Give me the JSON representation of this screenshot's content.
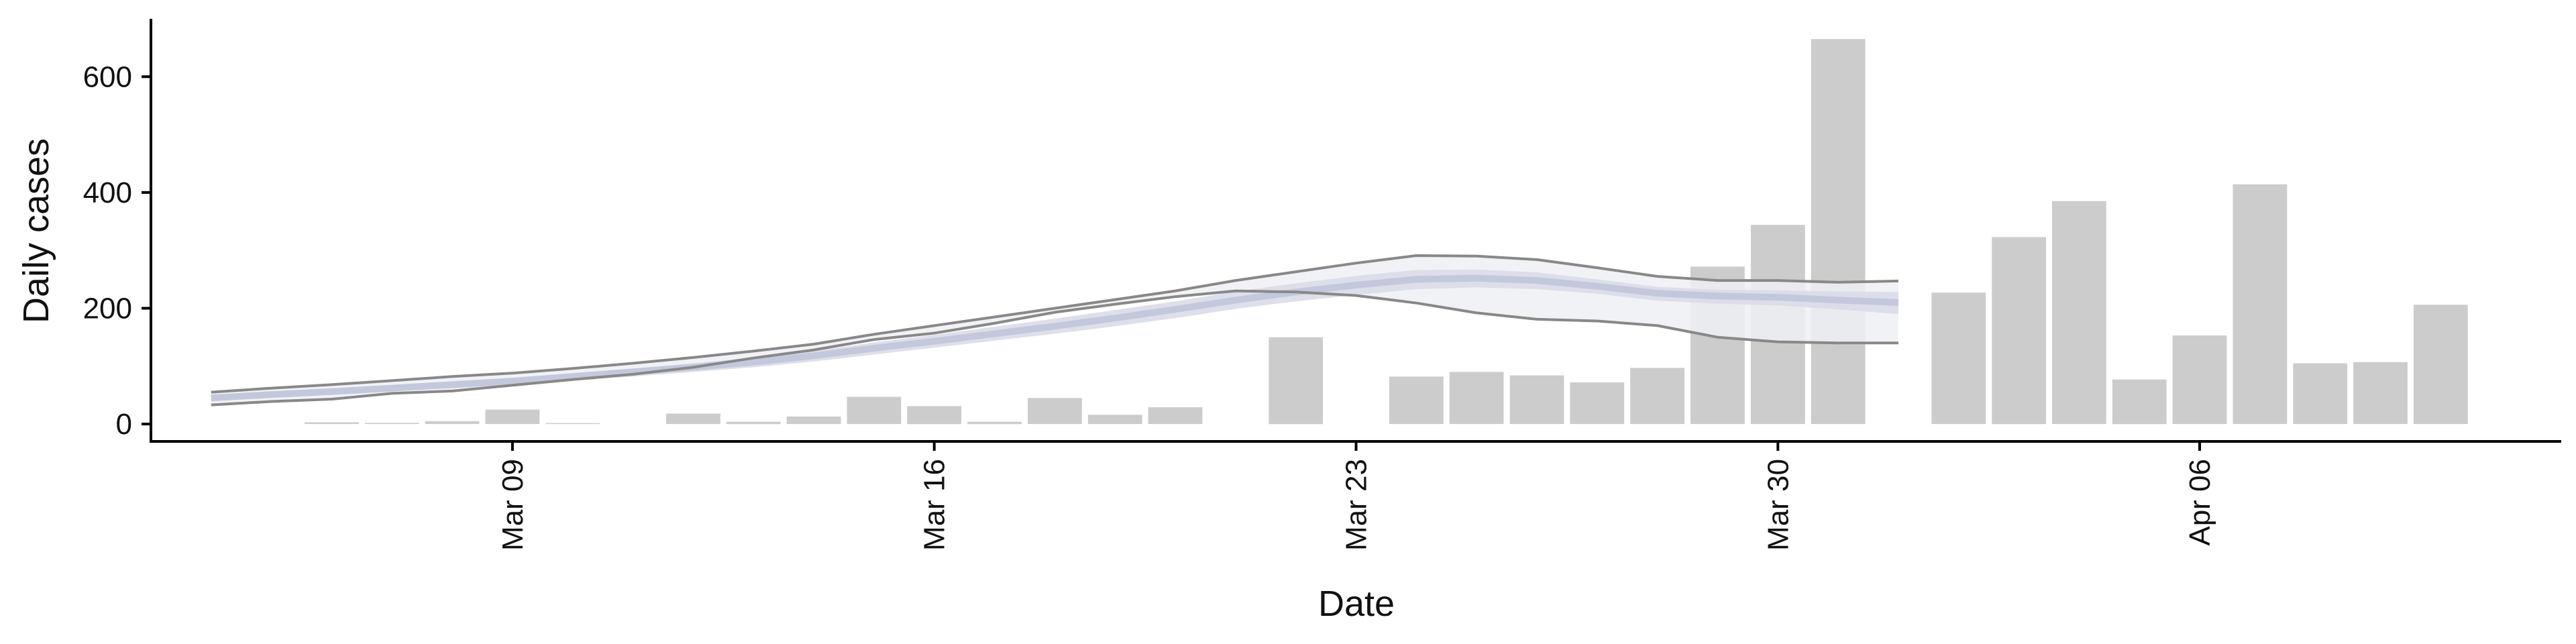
{
  "chart_data": {
    "type": "bar",
    "title": "",
    "xlabel": "Date",
    "ylabel": "Daily cases",
    "ylim": [
      -30,
      700
    ],
    "yticks": [
      0,
      200,
      400,
      600
    ],
    "xlim": [
      "2020-03-03",
      "2020-04-12"
    ],
    "xticks": [
      {
        "date": "2020-03-09",
        "label": "Mar 09"
      },
      {
        "date": "2020-03-16",
        "label": "Mar 16"
      },
      {
        "date": "2020-03-23",
        "label": "Mar 23"
      },
      {
        "date": "2020-03-30",
        "label": "Mar 30"
      },
      {
        "date": "2020-04-06",
        "label": "Apr 06"
      }
    ],
    "grid": false,
    "legend": "none",
    "colors": {
      "bars": "#cccccc",
      "band_outer": "#eff0f5",
      "band_inner": "#d9dce8",
      "median": "#c4c8dc",
      "bound_lines": "#888888",
      "axis": "#000000"
    },
    "bars": {
      "dates": [
        "2020-03-06",
        "2020-03-07",
        "2020-03-08",
        "2020-03-09",
        "2020-03-10",
        "2020-03-12",
        "2020-03-13",
        "2020-03-14",
        "2020-03-15",
        "2020-03-16",
        "2020-03-17",
        "2020-03-18",
        "2020-03-19",
        "2020-03-20",
        "2020-03-22",
        "2020-03-24",
        "2020-03-25",
        "2020-03-26",
        "2020-03-27",
        "2020-03-28",
        "2020-03-29",
        "2020-03-30",
        "2020-03-31",
        "2020-04-02",
        "2020-04-03",
        "2020-04-04",
        "2020-04-05",
        "2020-04-06",
        "2020-04-07",
        "2020-04-08",
        "2020-04-09",
        "2020-04-10"
      ],
      "values": [
        3,
        2,
        5,
        25,
        0,
        18,
        4,
        13,
        47,
        31,
        4,
        45,
        16,
        29,
        150,
        82,
        90,
        84,
        72,
        97,
        272,
        344,
        665,
        227,
        323,
        385,
        77,
        153,
        414,
        105,
        107,
        206
      ]
    },
    "nowcast": {
      "dates": [
        "2020-03-04",
        "2020-03-05",
        "2020-03-06",
        "2020-03-07",
        "2020-03-08",
        "2020-03-09",
        "2020-03-10",
        "2020-03-11",
        "2020-03-12",
        "2020-03-13",
        "2020-03-14",
        "2020-03-15",
        "2020-03-16",
        "2020-03-17",
        "2020-03-18",
        "2020-03-19",
        "2020-03-20",
        "2020-03-21",
        "2020-03-22",
        "2020-03-23",
        "2020-03-24",
        "2020-03-25",
        "2020-03-26",
        "2020-03-27",
        "2020-03-28",
        "2020-03-29",
        "2020-03-30",
        "2020-03-31",
        "2020-04-01"
      ],
      "upper": [
        55,
        62,
        68,
        75,
        82,
        88,
        96,
        105,
        115,
        126,
        138,
        155,
        170,
        185,
        200,
        215,
        230,
        248,
        263,
        278,
        291,
        290,
        284,
        270,
        255,
        248,
        248,
        245,
        247
      ],
      "upper50": [
        48,
        55,
        60,
        67,
        73,
        80,
        88,
        96,
        105,
        115,
        126,
        141,
        154,
        168,
        182,
        197,
        212,
        229,
        243,
        256,
        266,
        267,
        262,
        250,
        237,
        232,
        231,
        229,
        228
      ],
      "median": [
        45,
        51,
        56,
        62,
        68,
        74,
        82,
        90,
        98,
        107,
        118,
        131,
        143,
        156,
        169,
        183,
        198,
        214,
        228,
        240,
        250,
        252,
        248,
        238,
        226,
        221,
        219,
        214,
        210
      ],
      "lower50": [
        40,
        46,
        51,
        57,
        62,
        68,
        75,
        82,
        90,
        98,
        108,
        120,
        132,
        144,
        156,
        169,
        183,
        199,
        212,
        223,
        233,
        236,
        233,
        225,
        213,
        208,
        205,
        198,
        190
      ],
      "lower": [
        33,
        39,
        43,
        53,
        57,
        67,
        77,
        86,
        98,
        114,
        128,
        146,
        157,
        174,
        193,
        207,
        220,
        230,
        228,
        222,
        209,
        192,
        181,
        178,
        170,
        150,
        142,
        140,
        140
      ]
    }
  }
}
